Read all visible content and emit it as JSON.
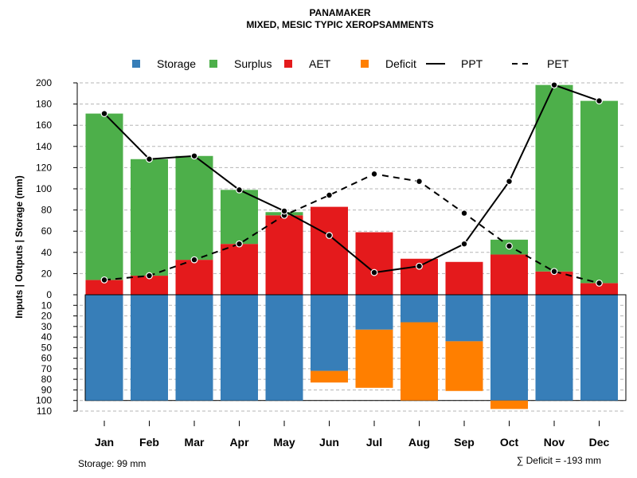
{
  "chart_data": {
    "type": "bar",
    "title": "PANAMAKER",
    "subtitle": "MIXED, MESIC TYPIC XEROPSAMMENTS",
    "ylabel": "Inputs | Outputs | Storage    (mm)",
    "categories": [
      "Jan",
      "Feb",
      "Mar",
      "Apr",
      "May",
      "Jun",
      "Jul",
      "Aug",
      "Sep",
      "Oct",
      "Nov",
      "Dec"
    ],
    "upper_ylim": [
      0,
      200
    ],
    "upper_ticks": [
      0,
      20,
      40,
      60,
      80,
      100,
      120,
      140,
      160,
      180,
      200
    ],
    "lower_ylim": [
      0,
      110
    ],
    "lower_ticks": [
      0,
      10,
      20,
      30,
      40,
      50,
      60,
      70,
      80,
      90,
      100,
      110
    ],
    "legend": [
      {
        "label": "Storage",
        "kind": "box",
        "color": "#377EB8"
      },
      {
        "label": "Surplus",
        "kind": "box",
        "color": "#4DAF4A"
      },
      {
        "label": "AET",
        "kind": "box",
        "color": "#E41A1C"
      },
      {
        "label": "Deficit",
        "kind": "box",
        "color": "#FF7F00"
      },
      {
        "label": "PPT",
        "kind": "solid",
        "color": "#000000"
      },
      {
        "label": "PET",
        "kind": "dashed",
        "color": "#000000"
      }
    ],
    "series": [
      {
        "name": "AET",
        "color": "#E41A1C",
        "values": [
          14,
          18,
          33,
          48,
          75,
          83,
          59,
          34,
          31,
          38,
          22,
          11
        ]
      },
      {
        "name": "Surplus",
        "color": "#4DAF4A",
        "values": [
          157,
          110,
          98,
          51,
          3,
          0,
          0,
          0,
          0,
          14,
          176,
          172
        ]
      },
      {
        "name": "Storage",
        "color": "#377EB8",
        "values": [
          100,
          100,
          100,
          100,
          100,
          72,
          33,
          26,
          44,
          100,
          100,
          100
        ]
      },
      {
        "name": "Deficit",
        "color": "#FF7F00",
        "values": [
          0,
          0,
          0,
          0,
          0,
          11,
          55,
          74,
          47,
          8,
          0,
          0
        ]
      },
      {
        "name": "PPT",
        "color": "#000000",
        "values": [
          171,
          128,
          131,
          99,
          79,
          56,
          21,
          27,
          48,
          107,
          198,
          183
        ]
      },
      {
        "name": "PET",
        "color": "#000000",
        "values": [
          14,
          18,
          33,
          48,
          75,
          94,
          114,
          107,
          77,
          46,
          22,
          11
        ]
      }
    ],
    "footer_left": "Storage: 99 mm",
    "footer_right": "∑ Deficit = -193 mm"
  }
}
